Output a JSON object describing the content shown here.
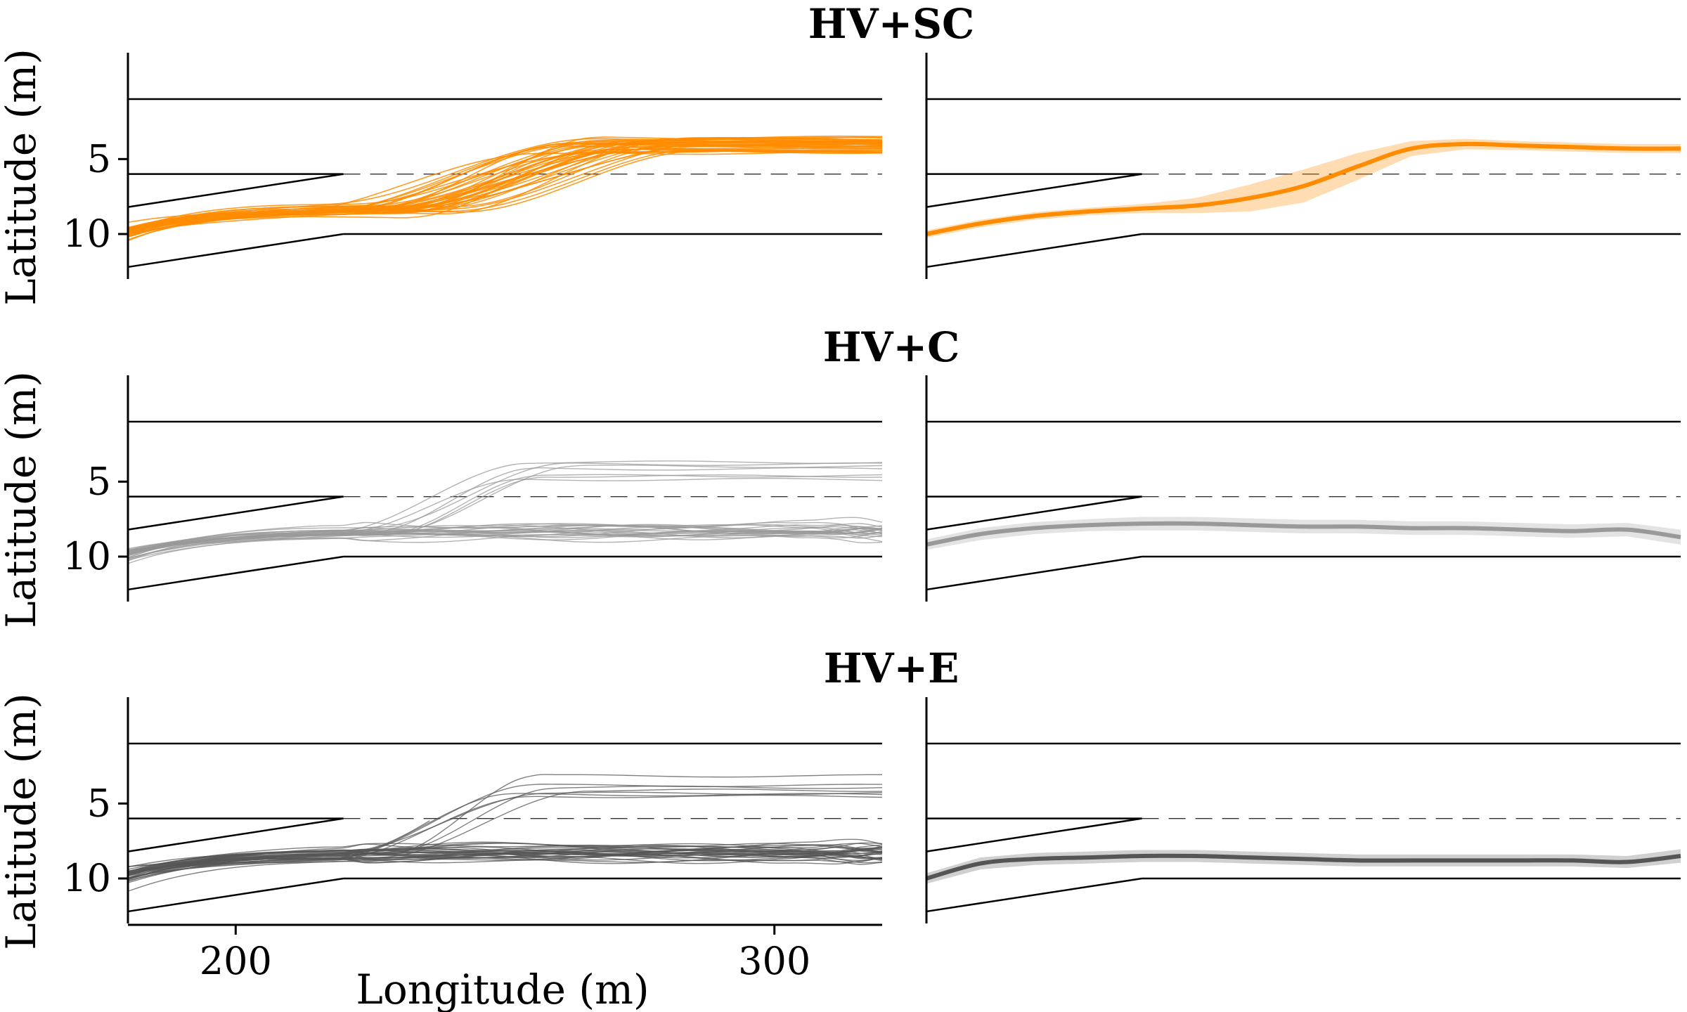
{
  "chart_data": {
    "type": "line",
    "layout": "3 rows x 2 columns; left column = individual trajectories, right column = mean trajectory with shaded band",
    "xlabel": "Longitude (m)",
    "ylabel": "Latitude (m)",
    "xlim": [
      180,
      320
    ],
    "ylim": [
      13,
      -2
    ],
    "x_ticks": [
      200,
      300
    ],
    "x_tick_labels": [
      "200",
      "300"
    ],
    "y_ticks": [
      5,
      10
    ],
    "y_tick_labels": [
      "5",
      "10"
    ],
    "road": {
      "edge_top": [
        [
          180,
          1
        ],
        [
          320,
          1
        ]
      ],
      "edge_bottom": [
        [
          220,
          10
        ],
        [
          320,
          10
        ]
      ],
      "merge_upper": [
        [
          180,
          8.2
        ],
        [
          220,
          6
        ]
      ],
      "merge_lower": [
        [
          180,
          12.2
        ],
        [
          220,
          10
        ]
      ],
      "lane_short": [
        [
          180,
          6
        ],
        [
          220,
          6
        ]
      ],
      "lane_dashed": [
        [
          220,
          6
        ],
        [
          320,
          6
        ]
      ]
    },
    "panels": [
      {
        "title": "HV+SC",
        "color": "#ff8c00",
        "trajectory_count": 40,
        "trajectory_x": [
          180,
          190,
          200,
          210,
          220,
          230,
          240,
          250,
          260,
          270,
          280,
          290,
          300,
          310,
          320
        ],
        "mean": [
          10.0,
          9.3,
          8.8,
          8.5,
          8.3,
          8.1,
          7.6,
          6.8,
          5.5,
          4.3,
          4.0,
          4.1,
          4.2,
          4.3,
          4.3
        ],
        "band": [
          0.25,
          0.25,
          0.25,
          0.25,
          0.3,
          0.5,
          0.9,
          1.1,
          0.9,
          0.5,
          0.35,
          0.3,
          0.3,
          0.3,
          0.3
        ]
      },
      {
        "title": "HV+C",
        "color": "#999999",
        "trajectory_count": 30,
        "trajectory_x": [
          180,
          190,
          200,
          210,
          220,
          230,
          240,
          250,
          260,
          270,
          280,
          290,
          300,
          310,
          320
        ],
        "mean": [
          9.2,
          8.5,
          8.1,
          7.9,
          7.8,
          7.8,
          7.9,
          8.0,
          8.0,
          8.1,
          8.1,
          8.2,
          8.3,
          8.2,
          8.7
        ],
        "band": [
          0.35,
          0.4,
          0.4,
          0.4,
          0.45,
          0.45,
          0.45,
          0.45,
          0.45,
          0.45,
          0.45,
          0.45,
          0.45,
          0.45,
          0.5
        ]
      },
      {
        "title": "HV+E",
        "color": "#555555",
        "trajectory_count": 40,
        "trajectory_x": [
          180,
          190,
          200,
          210,
          220,
          230,
          240,
          250,
          260,
          270,
          280,
          290,
          300,
          310,
          320
        ],
        "mean": [
          10.0,
          9.0,
          8.7,
          8.6,
          8.5,
          8.5,
          8.6,
          8.7,
          8.8,
          8.8,
          8.8,
          8.8,
          8.8,
          8.9,
          8.5
        ],
        "band": [
          0.35,
          0.4,
          0.4,
          0.4,
          0.4,
          0.4,
          0.4,
          0.4,
          0.4,
          0.4,
          0.4,
          0.4,
          0.4,
          0.4,
          0.45
        ]
      }
    ]
  }
}
